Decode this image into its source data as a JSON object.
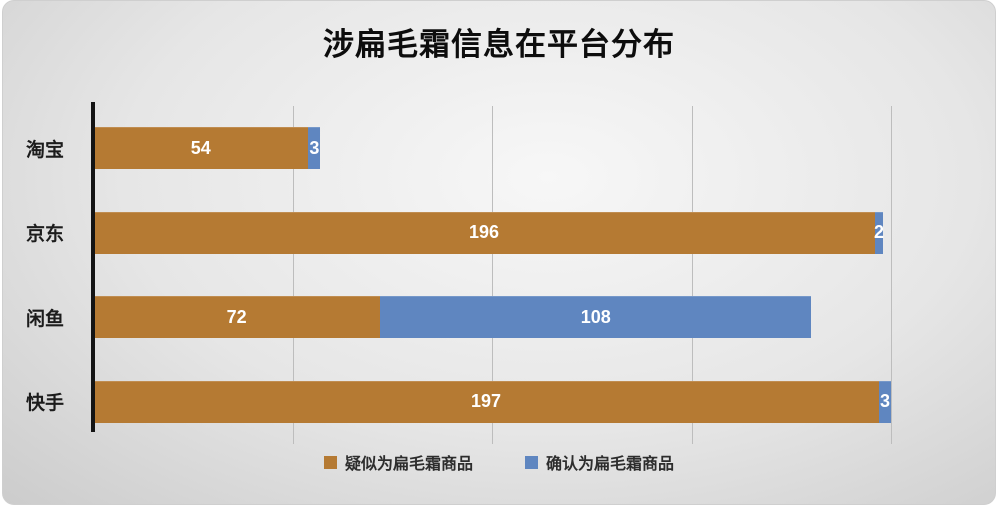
{
  "chart_data": {
    "type": "bar",
    "orientation": "horizontal",
    "stacked": true,
    "title": "涉扁毛霜信息在平台分布",
    "categories": [
      "淘宝",
      "京东",
      "闲鱼",
      "快手"
    ],
    "series": [
      {
        "name": "疑似为扁毛霜商品",
        "color": "#b57a33",
        "values": [
          54,
          196,
          72,
          197
        ]
      },
      {
        "name": "确认为扁毛霜商品",
        "color": "#5f86c0",
        "values": [
          3,
          2,
          108,
          3
        ]
      }
    ],
    "xlabel": "",
    "ylabel": "",
    "xlim": [
      0,
      200
    ],
    "gridlines": [
      50,
      100,
      150,
      200
    ],
    "grid": true,
    "legend_position": "bottom",
    "value_label_color": "#ffffff",
    "background": "gray-gradient"
  }
}
